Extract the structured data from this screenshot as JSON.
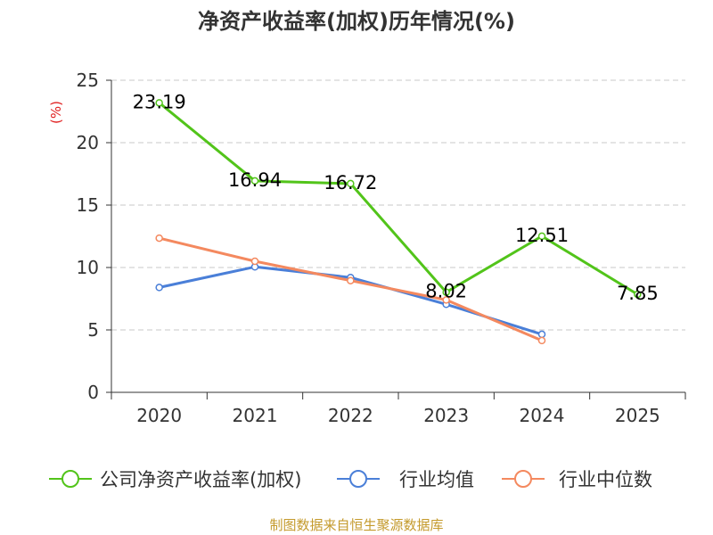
{
  "chart_data": {
    "type": "line",
    "title": "净资产收益率(加权)历年情况(%)",
    "ylabel": "(%)",
    "xlabel": "",
    "categories": [
      "2020",
      "2021",
      "2022",
      "2023",
      "2024",
      "2025"
    ],
    "ylim": [
      0,
      25
    ],
    "yticks": [
      0,
      5,
      10,
      15,
      20,
      25
    ],
    "grid": true,
    "legend_position": "bottom",
    "series": [
      {
        "name": "公司净资产收益率(加权)",
        "color": "#52c41a",
        "values": [
          23.19,
          16.94,
          16.72,
          8.02,
          12.51,
          7.85
        ],
        "labels": [
          "23.19",
          "16.94",
          "16.72",
          "8.02",
          "12.51",
          "7.85"
        ]
      },
      {
        "name": "行业均值",
        "color": "#4a7fd8",
        "values": [
          8.4,
          10.05,
          9.2,
          7.05,
          4.65,
          null
        ]
      },
      {
        "name": "行业中位数",
        "color": "#f4895f",
        "values": [
          12.35,
          10.5,
          8.95,
          7.4,
          4.15,
          null
        ]
      }
    ],
    "source": "制图数据来自恒生聚源数据库"
  }
}
